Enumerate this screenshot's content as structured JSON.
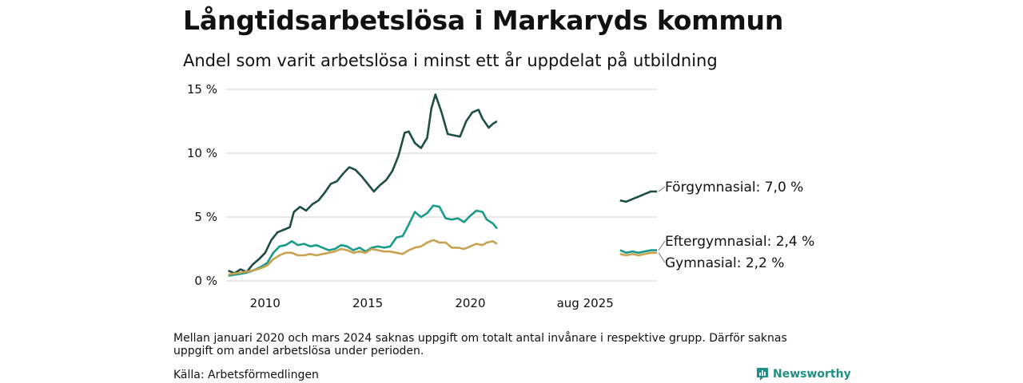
{
  "title": "Långtidsarbetslösa i Markaryds kommun",
  "subtitle": "Andel som varit arbetslösa i minst ett år uppdelat på utbildning",
  "note": "Mellan januari 2020 och mars 2024 saknas uppgift om totalt antal invånare i respektive grupp. Därför saknas uppgift om andel arbetslösa under perioden.",
  "source": "Källa: Arbetsförmedlingen",
  "brand": "Newsworthy",
  "chart_data": {
    "type": "line",
    "title": "Långtidsarbetslösa i Markaryds kommun",
    "subtitle": "Andel som varit arbetslösa i minst ett år uppdelat på utbildning",
    "y_unit": "%",
    "ylim": [
      0,
      15
    ],
    "y_ticks": [
      {
        "value": 0,
        "label": "0 %"
      },
      {
        "value": 5,
        "label": "5 %"
      },
      {
        "value": 10,
        "label": "10 %"
      },
      {
        "value": 15,
        "label": "15 %"
      }
    ],
    "x_ticks": [
      {
        "value": 2010,
        "label": "2010"
      },
      {
        "value": 2015,
        "label": "2015"
      },
      {
        "value": 2020,
        "label": "2020"
      },
      {
        "value": 2025.6,
        "label": "aug 2025"
      }
    ],
    "grid": "horizontal",
    "legend": "end-of-line labels",
    "series": [
      {
        "name": "Förgymnasial",
        "end_label": "Förgymnasial: 7,0 %",
        "color": "#1e4d45",
        "segments": [
          [
            [
              2008.2,
              0.8
            ],
            [
              2008.5,
              0.6
            ],
            [
              2008.8,
              0.9
            ],
            [
              2009.1,
              0.7
            ],
            [
              2009.4,
              1.3
            ],
            [
              2009.7,
              1.7
            ],
            [
              2010.0,
              2.2
            ],
            [
              2010.3,
              3.2
            ],
            [
              2010.6,
              3.8
            ],
            [
              2010.9,
              4.0
            ],
            [
              2011.2,
              4.2
            ],
            [
              2011.4,
              5.4
            ],
            [
              2011.7,
              5.8
            ],
            [
              2012.0,
              5.5
            ],
            [
              2012.3,
              6.0
            ],
            [
              2012.6,
              6.3
            ],
            [
              2012.9,
              6.9
            ],
            [
              2013.2,
              7.6
            ],
            [
              2013.5,
              7.8
            ],
            [
              2013.8,
              8.4
            ],
            [
              2014.1,
              8.9
            ],
            [
              2014.4,
              8.7
            ],
            [
              2014.7,
              8.2
            ],
            [
              2015.0,
              7.6
            ],
            [
              2015.3,
              7.0
            ],
            [
              2015.6,
              7.5
            ],
            [
              2015.9,
              7.9
            ],
            [
              2016.2,
              8.6
            ],
            [
              2016.5,
              9.8
            ],
            [
              2016.8,
              11.6
            ],
            [
              2017.0,
              11.7
            ],
            [
              2017.3,
              10.8
            ],
            [
              2017.6,
              10.4
            ],
            [
              2017.9,
              11.2
            ],
            [
              2018.1,
              13.5
            ],
            [
              2018.3,
              14.6
            ],
            [
              2018.6,
              13.2
            ],
            [
              2018.9,
              11.5
            ],
            [
              2019.2,
              11.4
            ],
            [
              2019.5,
              11.3
            ],
            [
              2019.8,
              12.5
            ],
            [
              2020.1,
              13.2
            ],
            [
              2020.4,
              13.4
            ],
            [
              2020.6,
              12.7
            ],
            [
              2020.9,
              12.0
            ],
            [
              2021.1,
              12.3
            ],
            [
              2021.3,
              12.5
            ]
          ],
          [
            [
              2027.3,
              6.3
            ],
            [
              2027.6,
              6.2
            ],
            [
              2027.9,
              6.4
            ],
            [
              2028.2,
              6.6
            ],
            [
              2028.5,
              6.8
            ],
            [
              2028.8,
              7.0
            ],
            [
              2029.1,
              7.0
            ]
          ]
        ]
      },
      {
        "name": "Eftergymnasial",
        "end_label": "Eftergymnasial: 2,4 %",
        "color": "#1a9a8a",
        "segments": [
          [
            [
              2008.2,
              0.4
            ],
            [
              2008.6,
              0.5
            ],
            [
              2009.0,
              0.6
            ],
            [
              2009.4,
              0.8
            ],
            [
              2009.8,
              1.1
            ],
            [
              2010.1,
              1.4
            ],
            [
              2010.4,
              2.2
            ],
            [
              2010.7,
              2.7
            ],
            [
              2011.0,
              2.8
            ],
            [
              2011.3,
              3.1
            ],
            [
              2011.6,
              2.8
            ],
            [
              2011.9,
              2.9
            ],
            [
              2012.2,
              2.7
            ],
            [
              2012.5,
              2.8
            ],
            [
              2012.8,
              2.6
            ],
            [
              2013.1,
              2.4
            ],
            [
              2013.4,
              2.5
            ],
            [
              2013.7,
              2.8
            ],
            [
              2014.0,
              2.7
            ],
            [
              2014.3,
              2.4
            ],
            [
              2014.6,
              2.6
            ],
            [
              2014.9,
              2.3
            ],
            [
              2015.2,
              2.6
            ],
            [
              2015.5,
              2.7
            ],
            [
              2015.8,
              2.6
            ],
            [
              2016.1,
              2.7
            ],
            [
              2016.4,
              3.4
            ],
            [
              2016.7,
              3.5
            ],
            [
              2017.0,
              4.4
            ],
            [
              2017.3,
              5.4
            ],
            [
              2017.6,
              5.0
            ],
            [
              2017.9,
              5.3
            ],
            [
              2018.2,
              5.9
            ],
            [
              2018.5,
              5.8
            ],
            [
              2018.8,
              4.9
            ],
            [
              2019.1,
              4.8
            ],
            [
              2019.4,
              4.9
            ],
            [
              2019.7,
              4.6
            ],
            [
              2020.0,
              5.1
            ],
            [
              2020.3,
              5.5
            ],
            [
              2020.6,
              5.4
            ],
            [
              2020.8,
              4.8
            ],
            [
              2021.1,
              4.5
            ],
            [
              2021.3,
              4.1
            ]
          ],
          [
            [
              2027.3,
              2.4
            ],
            [
              2027.6,
              2.2
            ],
            [
              2027.9,
              2.3
            ],
            [
              2028.2,
              2.2
            ],
            [
              2028.5,
              2.3
            ],
            [
              2028.8,
              2.4
            ],
            [
              2029.1,
              2.4
            ]
          ]
        ]
      },
      {
        "name": "Gymnasial",
        "end_label": "Gymnasial: 2,2 %",
        "color": "#c9a24f",
        "segments": [
          [
            [
              2008.2,
              0.5
            ],
            [
              2008.6,
              0.6
            ],
            [
              2009.0,
              0.7
            ],
            [
              2009.4,
              0.8
            ],
            [
              2009.8,
              1.0
            ],
            [
              2010.1,
              1.2
            ],
            [
              2010.4,
              1.7
            ],
            [
              2010.7,
              2.0
            ],
            [
              2011.0,
              2.2
            ],
            [
              2011.3,
              2.2
            ],
            [
              2011.6,
              2.0
            ],
            [
              2011.9,
              2.0
            ],
            [
              2012.2,
              2.1
            ],
            [
              2012.5,
              2.0
            ],
            [
              2012.8,
              2.1
            ],
            [
              2013.1,
              2.2
            ],
            [
              2013.4,
              2.3
            ],
            [
              2013.7,
              2.5
            ],
            [
              2014.0,
              2.4
            ],
            [
              2014.3,
              2.2
            ],
            [
              2014.6,
              2.3
            ],
            [
              2014.9,
              2.2
            ],
            [
              2015.2,
              2.5
            ],
            [
              2015.5,
              2.4
            ],
            [
              2015.8,
              2.3
            ],
            [
              2016.1,
              2.3
            ],
            [
              2016.4,
              2.2
            ],
            [
              2016.7,
              2.1
            ],
            [
              2017.0,
              2.4
            ],
            [
              2017.3,
              2.6
            ],
            [
              2017.6,
              2.7
            ],
            [
              2017.9,
              3.0
            ],
            [
              2018.2,
              3.2
            ],
            [
              2018.5,
              3.0
            ],
            [
              2018.8,
              3.0
            ],
            [
              2019.1,
              2.6
            ],
            [
              2019.4,
              2.6
            ],
            [
              2019.7,
              2.5
            ],
            [
              2020.0,
              2.7
            ],
            [
              2020.3,
              2.9
            ],
            [
              2020.6,
              2.8
            ],
            [
              2020.8,
              3.0
            ],
            [
              2021.1,
              3.1
            ],
            [
              2021.3,
              2.9
            ]
          ],
          [
            [
              2027.3,
              2.1
            ],
            [
              2027.6,
              2.0
            ],
            [
              2027.9,
              2.1
            ],
            [
              2028.2,
              2.0
            ],
            [
              2028.5,
              2.1
            ],
            [
              2028.8,
              2.2
            ],
            [
              2029.1,
              2.2
            ]
          ]
        ]
      }
    ]
  }
}
